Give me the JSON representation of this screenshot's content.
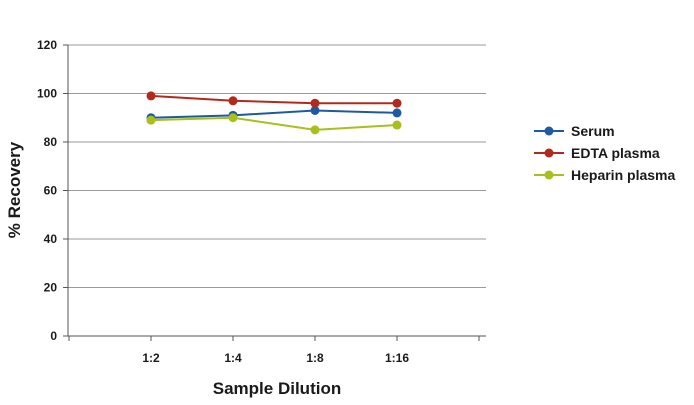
{
  "chart_data": {
    "type": "line",
    "title": "",
    "xlabel": "Sample Dilution",
    "ylabel": "% Recovery",
    "categories": [
      "1:2",
      "1:4",
      "1:8",
      "1:16"
    ],
    "ylim": [
      0,
      120
    ],
    "yticks": [
      0,
      20,
      40,
      60,
      80,
      100,
      120
    ],
    "grid": true,
    "legend_position": "right",
    "series": [
      {
        "name": "Serum",
        "values": [
          90,
          91,
          93,
          92
        ],
        "color": "#1f5aa0"
      },
      {
        "name": "EDTA plasma",
        "values": [
          99,
          97,
          96,
          96
        ],
        "color": "#b22a1e"
      },
      {
        "name": "Heparin plasma",
        "values": [
          89,
          90,
          85,
          87
        ],
        "color": "#a8bf1c"
      }
    ]
  }
}
